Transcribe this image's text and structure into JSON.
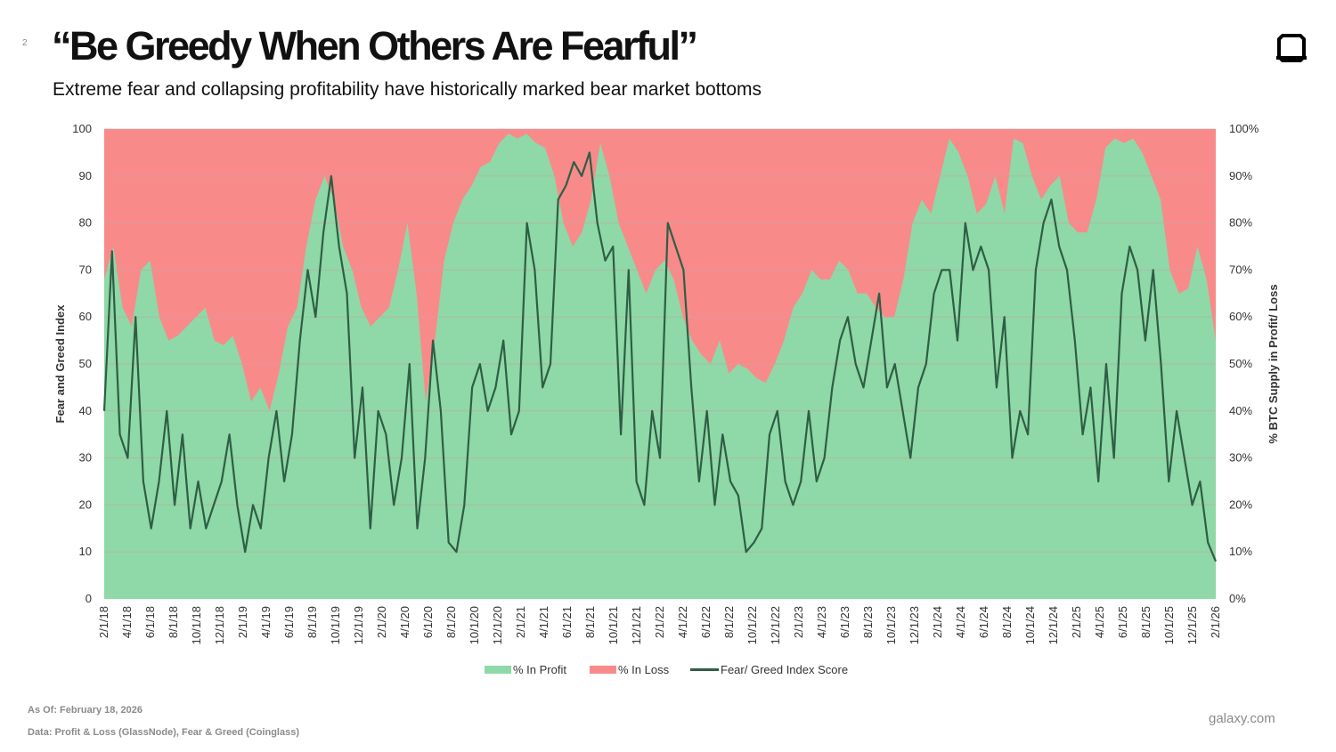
{
  "slide_number": "2",
  "title": "“Be Greedy When Others Are Fearful”",
  "subtitle": "Extreme fear and collapsing profitability have historically marked bear market bottoms",
  "footer": {
    "as_of": "As Of: February 18, 2026",
    "source": "Data: Profit & Loss (GlassNode), Fear & Greed (Coinglass)",
    "brand": "galaxy.com"
  },
  "colors": {
    "profit": "#8ed9a7",
    "loss": "#f98a8a",
    "index_line": "#2f5e44",
    "grid": "#c9a3a3"
  },
  "chart_data": {
    "type": "area+line",
    "title": "",
    "ylabel": "Fear and Greed Index",
    "y2label": "% BTC Supply in Profit/ Loss",
    "ylim": [
      0,
      100
    ],
    "y2lim": [
      0,
      1
    ],
    "y_ticks": [
      "0",
      "10",
      "20",
      "30",
      "40",
      "50",
      "60",
      "70",
      "80",
      "90",
      "100"
    ],
    "y2_ticks": [
      "0%",
      "10%",
      "20%",
      "30%",
      "40%",
      "50%",
      "60%",
      "70%",
      "80%",
      "90%",
      "100%"
    ],
    "x_ticks": [
      "2/1/18",
      "4/1/18",
      "6/1/18",
      "8/1/18",
      "10/1/18",
      "12/1/18",
      "2/1/19",
      "4/1/19",
      "6/1/19",
      "8/1/19",
      "10/1/19",
      "12/1/19",
      "2/1/20",
      "4/1/20",
      "6/1/20",
      "8/1/20",
      "10/1/20",
      "12/1/20",
      "2/1/21",
      "4/1/21",
      "6/1/21",
      "8/1/21",
      "10/1/21",
      "12/1/21",
      "2/1/22",
      "4/1/22",
      "6/1/22",
      "8/1/22",
      "10/1/22",
      "12/1/22",
      "2/1/23",
      "4/1/23",
      "6/1/23",
      "8/1/23",
      "10/1/23",
      "12/1/23",
      "2/1/24",
      "4/1/24",
      "6/1/24",
      "8/1/24",
      "10/1/24",
      "12/1/24",
      "2/1/25",
      "4/1/25",
      "6/1/25",
      "8/1/25",
      "10/1/25",
      "12/1/25",
      "2/1/26"
    ],
    "legend": [
      "% In Profit",
      "% In Loss",
      "Fear/ Greed Index Score"
    ],
    "legend_position": "bottom",
    "series": [
      {
        "name": "% In Profit",
        "axis": "right",
        "values": [
          0.68,
          0.75,
          0.62,
          0.58,
          0.7,
          0.72,
          0.6,
          0.55,
          0.56,
          0.58,
          0.6,
          0.62,
          0.55,
          0.54,
          0.56,
          0.5,
          0.42,
          0.45,
          0.4,
          0.48,
          0.58,
          0.62,
          0.75,
          0.85,
          0.9,
          0.85,
          0.75,
          0.7,
          0.62,
          0.58,
          0.6,
          0.62,
          0.7,
          0.8,
          0.65,
          0.42,
          0.55,
          0.72,
          0.8,
          0.85,
          0.88,
          0.92,
          0.93,
          0.97,
          0.99,
          0.98,
          0.99,
          0.97,
          0.96,
          0.9,
          0.8,
          0.75,
          0.78,
          0.85,
          0.97,
          0.9,
          0.8,
          0.75,
          0.7,
          0.65,
          0.7,
          0.72,
          0.68,
          0.6,
          0.55,
          0.52,
          0.5,
          0.55,
          0.48,
          0.5,
          0.49,
          0.47,
          0.46,
          0.5,
          0.55,
          0.62,
          0.65,
          0.7,
          0.68,
          0.68,
          0.72,
          0.7,
          0.65,
          0.65,
          0.62,
          0.6,
          0.6,
          0.68,
          0.8,
          0.85,
          0.82,
          0.9,
          0.98,
          0.95,
          0.9,
          0.82,
          0.84,
          0.9,
          0.82,
          0.98,
          0.97,
          0.9,
          0.85,
          0.88,
          0.9,
          0.8,
          0.78,
          0.78,
          0.85,
          0.96,
          0.98,
          0.97,
          0.98,
          0.95,
          0.9,
          0.85,
          0.7,
          0.65,
          0.66,
          0.75,
          0.68,
          0.55
        ]
      },
      {
        "name": "Fear/ Greed Index Score",
        "axis": "left",
        "values": [
          40,
          74,
          35,
          30,
          60,
          25,
          15,
          25,
          40,
          20,
          35,
          15,
          25,
          15,
          20,
          25,
          35,
          20,
          10,
          20,
          15,
          30,
          40,
          25,
          35,
          55,
          70,
          60,
          78,
          90,
          75,
          65,
          30,
          45,
          15,
          40,
          35,
          20,
          30,
          50,
          15,
          30,
          55,
          40,
          12,
          10,
          20,
          45,
          50,
          40,
          45,
          55,
          35,
          40,
          80,
          70,
          45,
          50,
          85,
          88,
          93,
          90,
          95,
          80,
          72,
          75,
          35,
          70,
          25,
          20,
          40,
          30,
          80,
          75,
          70,
          45,
          25,
          40,
          20,
          35,
          25,
          22,
          10,
          12,
          15,
          35,
          40,
          25,
          20,
          25,
          40,
          25,
          30,
          45,
          55,
          60,
          50,
          45,
          55,
          65,
          45,
          50,
          40,
          30,
          45,
          50,
          65,
          70,
          70,
          55,
          80,
          70,
          75,
          70,
          45,
          60,
          30,
          40,
          35,
          70,
          80,
          85,
          75,
          70,
          55,
          35,
          45,
          25,
          50,
          30,
          65,
          75,
          70,
          55,
          70,
          50,
          25,
          40,
          30,
          20,
          25,
          12,
          8
        ]
      }
    ]
  }
}
